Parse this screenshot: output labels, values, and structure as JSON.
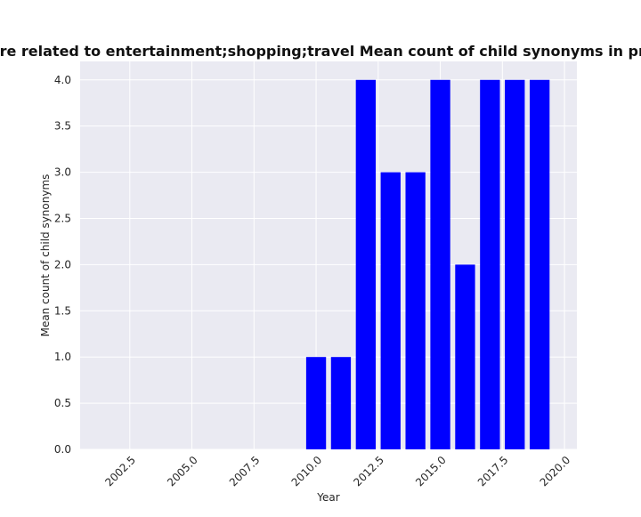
{
  "chart_data": {
    "type": "bar",
    "title": "ories are related to entertainment;shopping;travel Mean count of child synonyms in privacy po",
    "xlabel": "Year",
    "ylabel": "Mean count of child synonyms",
    "x": [
      2010,
      2011,
      2012,
      2013,
      2014,
      2015,
      2016,
      2017,
      2018,
      2019
    ],
    "values": [
      1,
      1,
      4,
      3,
      3,
      4,
      2,
      4,
      4,
      4
    ],
    "xlim": [
      2000.5,
      2020.5
    ],
    "ylim": [
      0,
      4.2
    ],
    "xticks": [
      "2002.5",
      "2005.0",
      "2007.5",
      "2010.0",
      "2012.5",
      "2015.0",
      "2017.5",
      "2020.0"
    ],
    "yticks": [
      "0.0",
      "0.5",
      "1.0",
      "1.5",
      "2.0",
      "2.5",
      "3.0",
      "3.5",
      "4.0"
    ],
    "grid": true,
    "bar_color": "#0000ff",
    "plot_background": "#eaeaf2",
    "grid_color": "#ffffff"
  }
}
